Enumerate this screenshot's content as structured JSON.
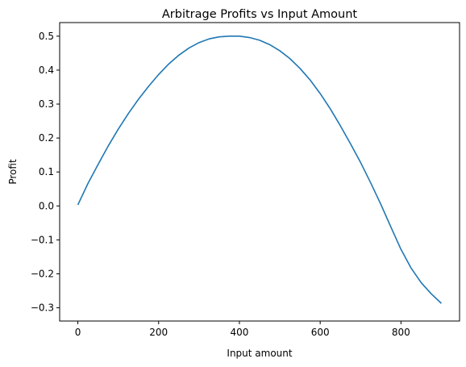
{
  "chart_data": {
    "type": "line",
    "title": "Arbitrage Profits vs Input Amount",
    "xlabel": "Input amount",
    "ylabel": "Profit",
    "xlim": [
      -45,
      945
    ],
    "ylim": [
      -0.339,
      0.54
    ],
    "xticks": [
      0,
      200,
      400,
      600,
      800
    ],
    "xtick_labels": [
      "0",
      "200",
      "400",
      "600",
      "800"
    ],
    "yticks": [
      -0.3,
      -0.2,
      -0.1,
      0.0,
      0.1,
      0.2,
      0.3,
      0.4,
      0.5
    ],
    "ytick_labels": [
      "−0.3",
      "−0.2",
      "−0.1",
      "0.0",
      "0.1",
      "0.2",
      "0.3",
      "0.4",
      "0.5"
    ],
    "grid": false,
    "line_color": "#1f77b4",
    "series": [
      {
        "x": [
          0,
          25,
          50,
          75,
          100,
          125,
          150,
          175,
          200,
          225,
          250,
          275,
          300,
          325,
          350,
          375,
          400,
          425,
          450,
          475,
          500,
          525,
          550,
          575,
          600,
          625,
          650,
          675,
          700,
          725,
          750,
          775,
          800,
          825,
          850,
          875,
          900
        ],
        "values": [
          0.003,
          0.066,
          0.122,
          0.176,
          0.226,
          0.272,
          0.314,
          0.352,
          0.387,
          0.418,
          0.444,
          0.465,
          0.481,
          0.492,
          0.498,
          0.5,
          0.5,
          0.496,
          0.488,
          0.475,
          0.457,
          0.434,
          0.405,
          0.371,
          0.331,
          0.286,
          0.236,
          0.183,
          0.128,
          0.068,
          0.005,
          -0.062,
          -0.128,
          -0.183,
          -0.226,
          -0.259,
          -0.287
        ]
      }
    ]
  }
}
